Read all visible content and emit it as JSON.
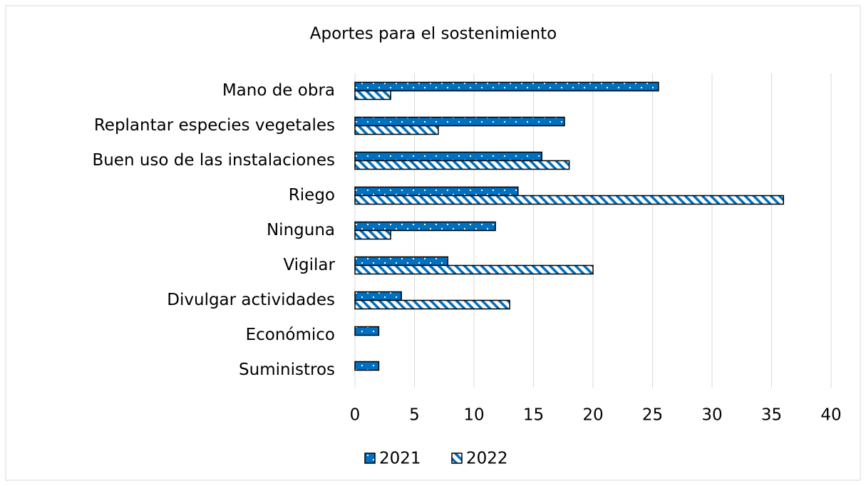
{
  "chart_data": {
    "type": "hbar",
    "title": "Aportes para el sostenimiento",
    "categories": [
      "Mano de obra",
      "Replantar especies vegetales",
      "Buen uso de las instalaciones",
      "Riego",
      "Ninguna",
      "Vigilar",
      "Divulgar actividades",
      "Económico",
      "Suministros"
    ],
    "series": [
      {
        "name": "2021",
        "color": "#0070c0",
        "pattern": "dots",
        "values": [
          25.5,
          17.6,
          15.7,
          13.7,
          11.8,
          7.8,
          3.9,
          2.0,
          2.0
        ]
      },
      {
        "name": "2022",
        "color": "#0070c0",
        "pattern": "hatch",
        "values": [
          3,
          7,
          18,
          36,
          3,
          20,
          13,
          0,
          0
        ]
      }
    ],
    "xlim": [
      0,
      40
    ],
    "xticks": [
      0,
      5,
      10,
      15,
      20,
      25,
      30,
      35,
      40
    ],
    "grid": true,
    "legend": "bottom"
  }
}
